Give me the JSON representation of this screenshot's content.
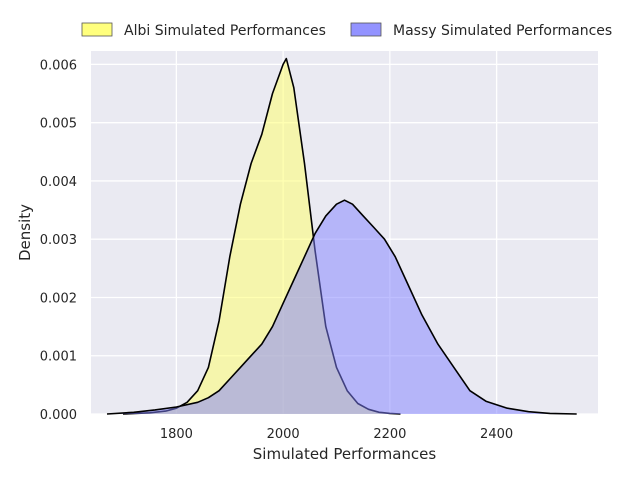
{
  "chart_data": {
    "type": "area",
    "xlabel": "Simulated Performances",
    "ylabel": "Density",
    "xlim": [
      1640,
      2590
    ],
    "ylim": [
      0,
      0.00623
    ],
    "xticks": [
      1800,
      2000,
      2200,
      2400
    ],
    "yticks": [
      0.0,
      0.001,
      0.002,
      0.003,
      0.004,
      0.005,
      0.006
    ],
    "ytick_labels": [
      "0.000",
      "0.001",
      "0.002",
      "0.003",
      "0.004",
      "0.005",
      "0.006"
    ],
    "grid": true,
    "legend_position": "top, above plot, horizontal",
    "series": [
      {
        "name": "Albi Simulated Performances",
        "color": "#ffff66",
        "x": [
          1700,
          1750,
          1780,
          1800,
          1820,
          1840,
          1860,
          1880,
          1900,
          1920,
          1940,
          1960,
          1980,
          2000,
          2006,
          2020,
          2040,
          2060,
          2080,
          2100,
          2120,
          2140,
          2160,
          2180,
          2200,
          2220
        ],
        "y": [
          0,
          2e-05,
          5e-05,
          0.0001,
          0.0002,
          0.0004,
          0.0008,
          0.0016,
          0.0027,
          0.0036,
          0.0043,
          0.0048,
          0.0055,
          0.006,
          0.0061,
          0.0056,
          0.0043,
          0.0028,
          0.0015,
          0.0008,
          0.0004,
          0.00018,
          8e-05,
          3e-05,
          1e-05,
          0
        ]
      },
      {
        "name": "Massy Simulated Performances",
        "color": "#8080ff",
        "x": [
          1670,
          1720,
          1760,
          1800,
          1840,
          1860,
          1880,
          1900,
          1920,
          1940,
          1960,
          1980,
          2000,
          2020,
          2040,
          2060,
          2080,
          2100,
          2115,
          2130,
          2150,
          2170,
          2190,
          2210,
          2230,
          2260,
          2290,
          2320,
          2350,
          2380,
          2420,
          2460,
          2500,
          2550
        ],
        "y": [
          0,
          3e-05,
          7e-05,
          0.00012,
          0.0002,
          0.00028,
          0.0004,
          0.0006,
          0.0008,
          0.001,
          0.0012,
          0.0015,
          0.0019,
          0.0023,
          0.0027,
          0.0031,
          0.0034,
          0.0036,
          0.00367,
          0.0036,
          0.0034,
          0.0032,
          0.003,
          0.0027,
          0.0023,
          0.0017,
          0.0012,
          0.0008,
          0.0004,
          0.00022,
          0.0001,
          4e-05,
          1e-05,
          0
        ]
      }
    ]
  }
}
